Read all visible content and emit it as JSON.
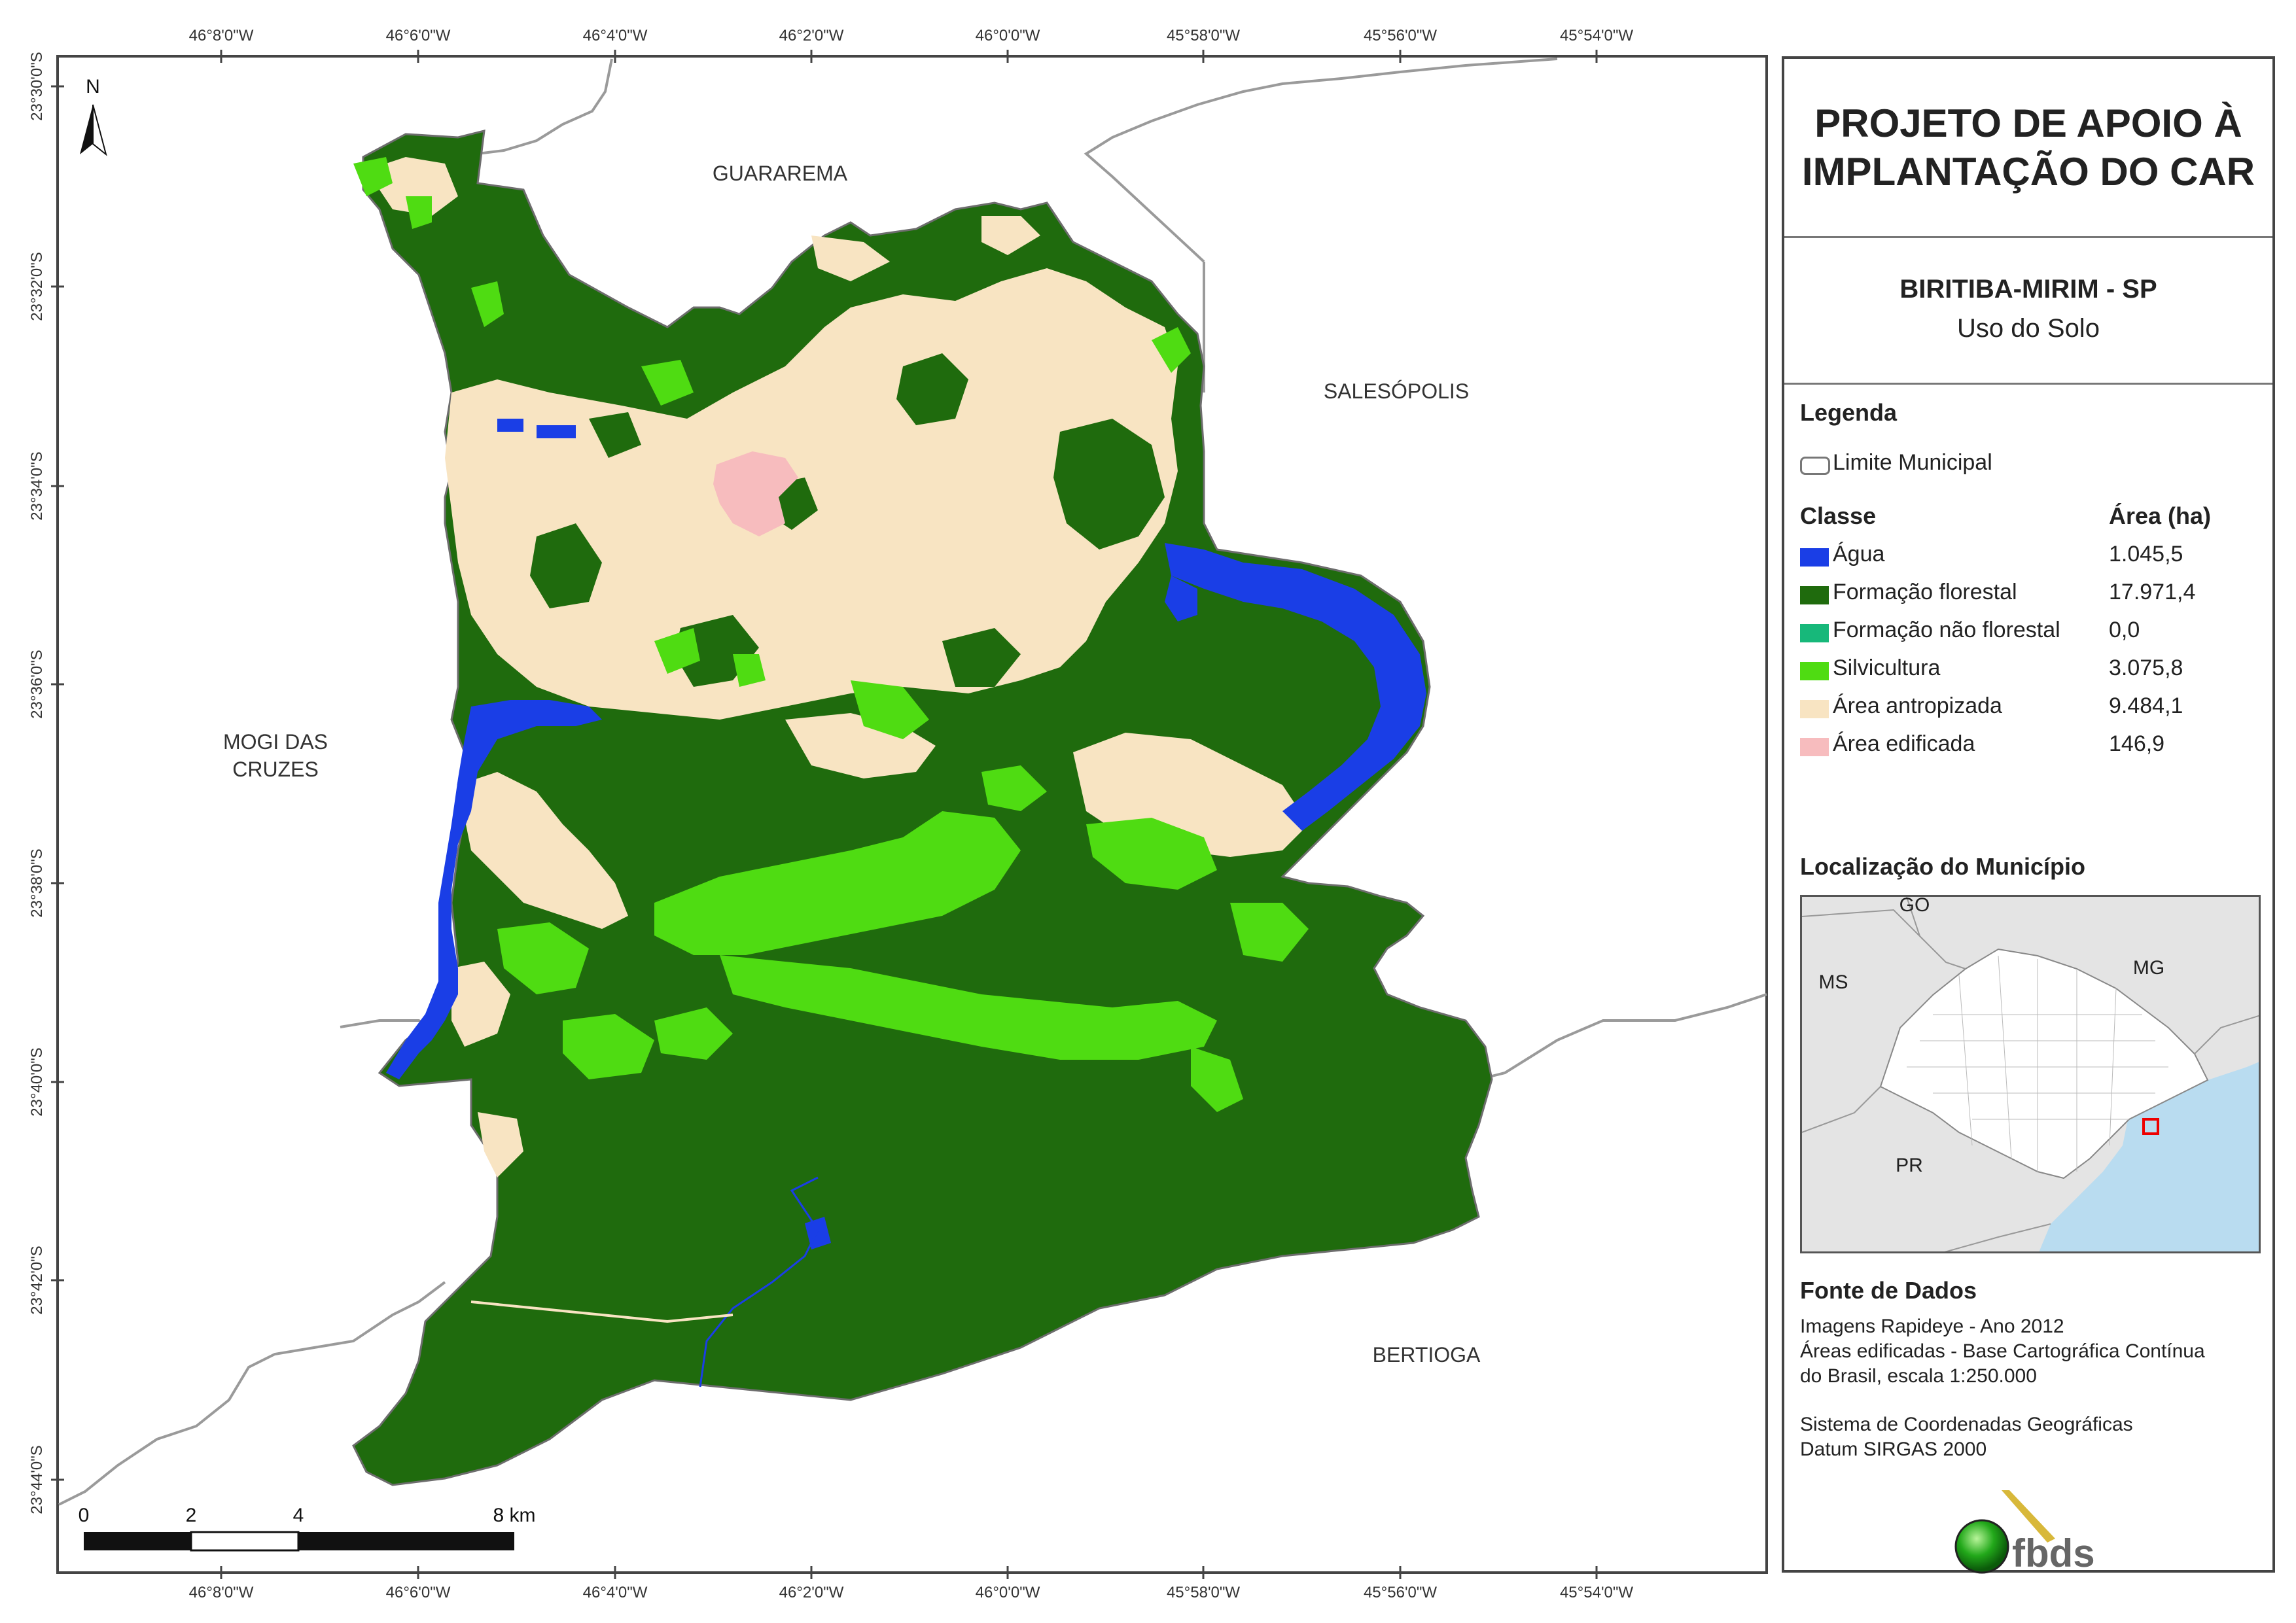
{
  "map": {
    "top_ticks": [
      "46°8'0\"W",
      "46°6'0\"W",
      "46°4'0\"W",
      "46°2'0\"W",
      "46°0'0\"W",
      "45°58'0\"W",
      "45°56'0\"W",
      "45°54'0\"W"
    ],
    "bottom_ticks": [
      "46°8'0\"W",
      "46°6'0\"W",
      "46°4'0\"W",
      "46°2'0\"W",
      "46°0'0\"W",
      "45°58'0\"W",
      "45°56'0\"W",
      "45°54'0\"W"
    ],
    "left_ticks": [
      "23°30'0\"S",
      "23°32'0\"S",
      "23°34'0\"S",
      "23°36'0\"S",
      "23°38'0\"S",
      "23°40'0\"S",
      "23°42'0\"S",
      "23°44'0\"S"
    ],
    "north_label": "N",
    "neighbors": {
      "guararema": "GUARAREMA",
      "salesopolis": "SALESÓPOLIS",
      "mogi_line1": "MOGI DAS",
      "mogi_line2": "CRUZES",
      "bertioga": "BERTIOGA"
    },
    "scale": {
      "l0": "0",
      "l2": "2",
      "l4": "4",
      "l8": "8 km"
    }
  },
  "panel": {
    "title_line1": "PROJETO DE APOIO À",
    "title_line2": "IMPLANTAÇÃO DO CAR",
    "municipality": "BIRITIBA-MIRIM - SP",
    "theme": "Uso do Solo",
    "legend_heading": "Legenda",
    "boundary_label": "Limite Municipal",
    "class_heading": "Classe",
    "area_heading": "Área (ha)",
    "classes": [
      {
        "label": "Água",
        "area": "1.045,5",
        "color": "#1a3ee6"
      },
      {
        "label": "Formação florestal",
        "area": "17.971,4",
        "color": "#1f6b0d"
      },
      {
        "label": "Formação não florestal",
        "area": "0,0",
        "color": "#17b87a"
      },
      {
        "label": "Silvicultura",
        "area": "3.075,8",
        "color": "#4fdc12"
      },
      {
        "label": "Área antropizada",
        "area": "9.484,1",
        "color": "#f8e4c2"
      },
      {
        "label": "Área edificada",
        "area": "146,9",
        "color": "#f7bcbe"
      }
    ],
    "location_heading": "Localização do Município",
    "location_labels": {
      "go": "GO",
      "ms": "MS",
      "mg": "MG",
      "pr": "PR"
    },
    "sources_heading": "Fonte de Dados",
    "sources": {
      "line1": "Imagens Rapideye - Ano 2012",
      "line2": "Áreas edificadas - Base Cartográfica Contínua",
      "line3": "do Brasil, escala 1:250.000",
      "line4": "Sistema de Coordenadas Geográficas",
      "line5": "Datum SIRGAS 2000"
    },
    "logo_text": "fbds"
  }
}
